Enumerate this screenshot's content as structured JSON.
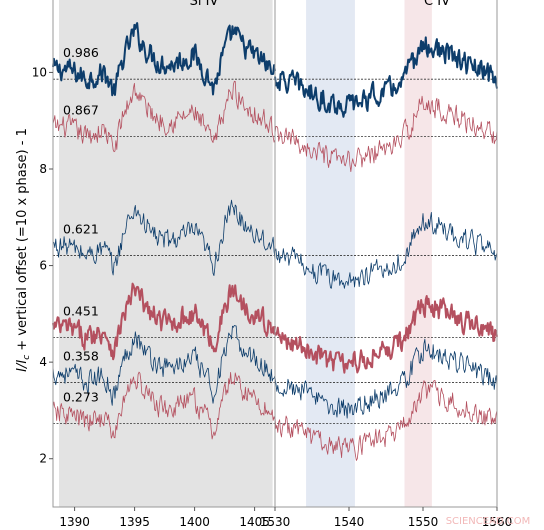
{
  "chart_data": {
    "type": "line",
    "ylabel": "I/I_c + vertical offset (=10 x phase) - 1",
    "ylabel_parts": {
      "main": "I/I",
      "sub": "c",
      "rest": " + vertical offset (=10 x phase) - 1"
    },
    "ylim": [
      1.0,
      11.5
    ],
    "yticks": [
      "2",
      "4",
      "6",
      "8",
      "10"
    ],
    "ion_labels": [
      "Si IV",
      "C IV"
    ],
    "panels": [
      {
        "xlim": [
          1388.2,
          1406.7
        ],
        "xticks": [
          1390,
          1395,
          1400,
          1405
        ]
      },
      {
        "xlim": [
          1530,
          1560
        ],
        "xticks": [
          1530,
          1540,
          1550,
          1560
        ]
      }
    ],
    "shaded_bands": [
      {
        "panel": 0,
        "x": [
          1388.7,
          1406.5
        ],
        "color": "#e3e3e3"
      },
      {
        "panel": 1,
        "x": [
          1534.2,
          1540.8
        ],
        "color": "#e3e9f3"
      },
      {
        "panel": 1,
        "x": [
          1547.5,
          1551.2
        ],
        "color": "#f6e6e8"
      }
    ],
    "series": [
      {
        "phase_label": "0.986",
        "baseline": 9.86,
        "color": "#0d3d6b",
        "weight": "thick"
      },
      {
        "phase_label": "0.867",
        "baseline": 8.67,
        "color": "#b4505f",
        "weight": "thin"
      },
      {
        "phase_label": "0.621",
        "baseline": 6.21,
        "color": "#0d3d6b",
        "weight": "thin"
      },
      {
        "phase_label": "0.451",
        "baseline": 4.51,
        "color": "#b4505f",
        "weight": "thick"
      },
      {
        "phase_label": "0.358",
        "baseline": 3.58,
        "color": "#0d3d6b",
        "weight": "thin"
      },
      {
        "phase_label": "0.273",
        "baseline": 2.73,
        "color": "#b4505f",
        "weight": "thin"
      }
    ],
    "profile_si": [
      [
        1388.2,
        0.2
      ],
      [
        1389.5,
        0.2
      ],
      [
        1391.0,
        0.0
      ],
      [
        1392.5,
        0.15
      ],
      [
        1393.3,
        -0.3
      ],
      [
        1394.0,
        0.4
      ],
      [
        1395.0,
        1.0
      ],
      [
        1396.0,
        0.6
      ],
      [
        1397.0,
        0.35
      ],
      [
        1398.0,
        0.3
      ],
      [
        1399.0,
        0.4
      ],
      [
        1400.0,
        0.5
      ],
      [
        1401.0,
        0.1
      ],
      [
        1401.6,
        -0.2
      ],
      [
        1402.5,
        0.6
      ],
      [
        1403.2,
        1.0
      ],
      [
        1404.0,
        0.7
      ],
      [
        1405.0,
        0.5
      ],
      [
        1406.0,
        0.3
      ],
      [
        1406.7,
        0.1
      ]
    ],
    "profile_c": [
      [
        1530,
        0.0
      ],
      [
        1533,
        -0.1
      ],
      [
        1535,
        -0.3
      ],
      [
        1537,
        -0.45
      ],
      [
        1539,
        -0.55
      ],
      [
        1541,
        -0.5
      ],
      [
        1543,
        -0.35
      ],
      [
        1545,
        -0.25
      ],
      [
        1547,
        -0.1
      ],
      [
        1548.5,
        0.3
      ],
      [
        1550,
        0.7
      ],
      [
        1552,
        0.6
      ],
      [
        1554,
        0.45
      ],
      [
        1556,
        0.3
      ],
      [
        1558,
        0.15
      ],
      [
        1560,
        0.0
      ]
    ]
  },
  "watermark": "SCIENCEAD.COM"
}
